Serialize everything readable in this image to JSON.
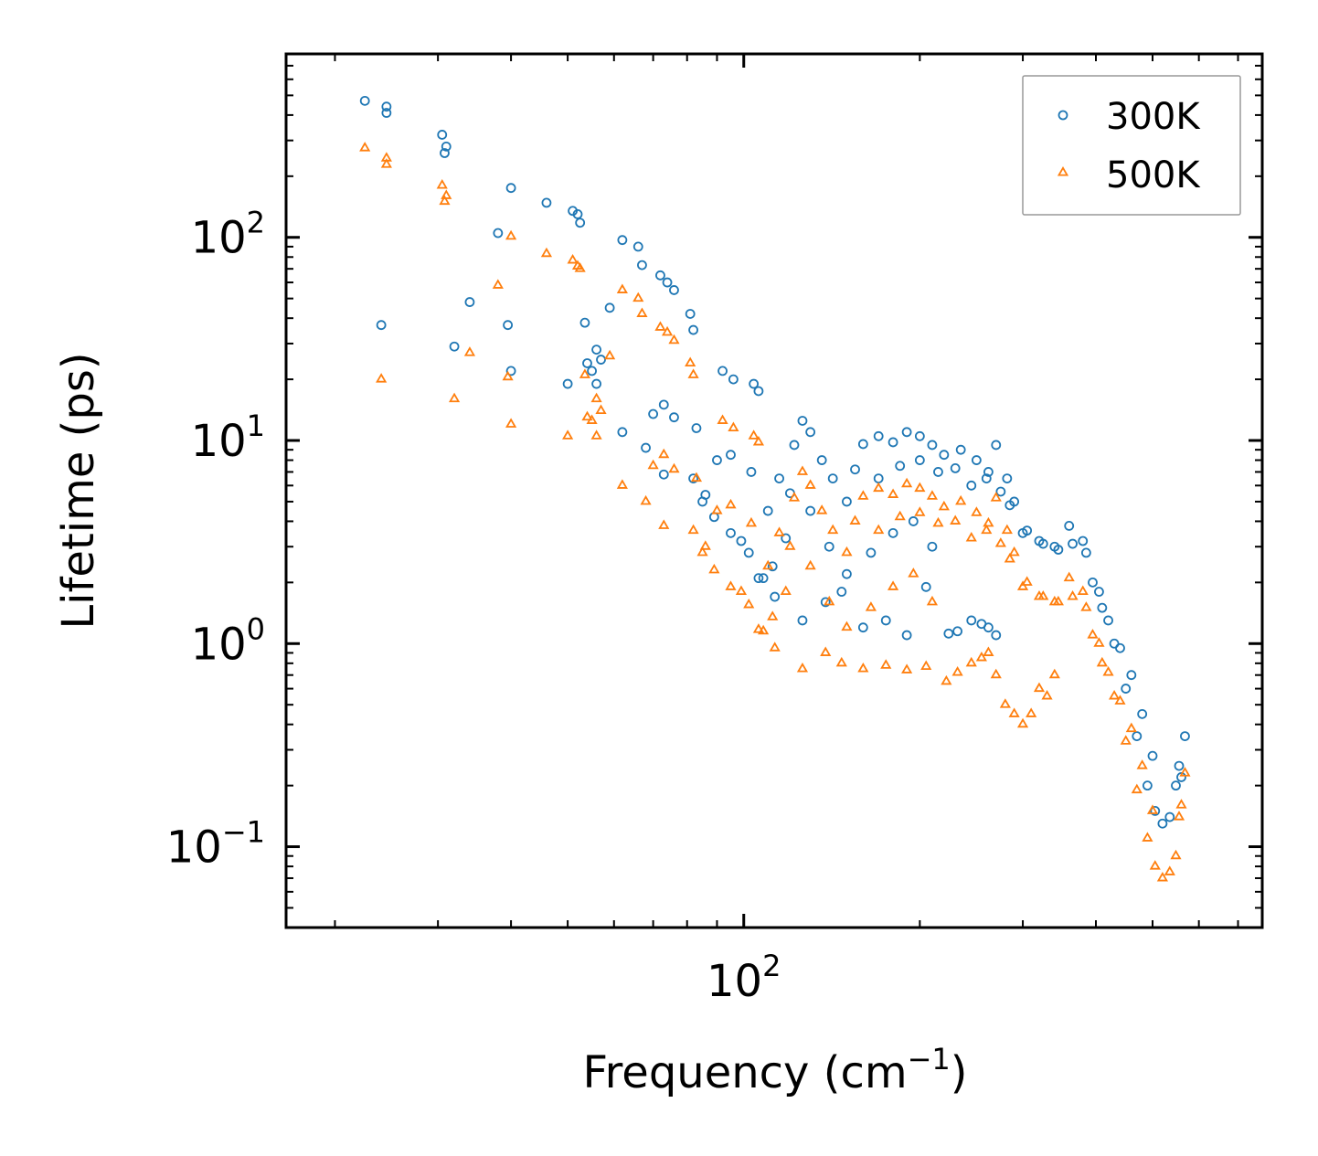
{
  "chart_data": {
    "type": "scatter",
    "title": "",
    "xlabel": "Frequency (cm",
    "xlabel_superscript": "−1",
    "xlabel_suffix": ")",
    "ylabel": "Lifetime (ps)",
    "xscale": "log",
    "yscale": "log",
    "xlim": [
      16.5,
      770
    ],
    "ylim": [
      0.04,
      800
    ],
    "x_major_ticks": [
      {
        "value": 100,
        "base": "10",
        "exp": "2"
      }
    ],
    "y_major_ticks": [
      {
        "value": 0.1,
        "base": "10",
        "exp": "−1"
      },
      {
        "value": 1,
        "base": "10",
        "exp": "0"
      },
      {
        "value": 10,
        "base": "10",
        "exp": "1"
      },
      {
        "value": 100,
        "base": "10",
        "exp": "2"
      }
    ],
    "legend_position": "top-right",
    "series": [
      {
        "name": "300K",
        "marker": "circle",
        "color": "#1f77b4",
        "points": [
          [
            22.5,
            470
          ],
          [
            24.5,
            440
          ],
          [
            24.5,
            410
          ],
          [
            30.5,
            320
          ],
          [
            31,
            280
          ],
          [
            30.8,
            260
          ],
          [
            40,
            175
          ],
          [
            46,
            148
          ],
          [
            51,
            135
          ],
          [
            52,
            130
          ],
          [
            52.5,
            118
          ],
          [
            62,
            97
          ],
          [
            66,
            90
          ],
          [
            67,
            73
          ],
          [
            72,
            65
          ],
          [
            74,
            60
          ],
          [
            76,
            55
          ],
          [
            81,
            42
          ],
          [
            82,
            35
          ],
          [
            38,
            105
          ],
          [
            34,
            48
          ],
          [
            32,
            29
          ],
          [
            24,
            37
          ],
          [
            40,
            22
          ],
          [
            39.5,
            37
          ],
          [
            59,
            45
          ],
          [
            56,
            28
          ],
          [
            57,
            25
          ],
          [
            54,
            24
          ],
          [
            53.5,
            38
          ],
          [
            55,
            22
          ],
          [
            56,
            19
          ],
          [
            50,
            19
          ],
          [
            62,
            11
          ],
          [
            68,
            9.2
          ],
          [
            70,
            13.5
          ],
          [
            73,
            15
          ],
          [
            76,
            13
          ],
          [
            83,
            11.5
          ],
          [
            92,
            22
          ],
          [
            96,
            20
          ],
          [
            104,
            19
          ],
          [
            106,
            17.5
          ],
          [
            73,
            6.8
          ],
          [
            82,
            6.5
          ],
          [
            90,
            8
          ],
          [
            86,
            5.4
          ],
          [
            95,
            8.5
          ],
          [
            103,
            7
          ],
          [
            85,
            5
          ],
          [
            89,
            4.2
          ],
          [
            95,
            3.5
          ],
          [
            99,
            3.2
          ],
          [
            102,
            2.8
          ],
          [
            106,
            2.1
          ],
          [
            112,
            2.4
          ],
          [
            118,
            3.3
          ],
          [
            122,
            9.5
          ],
          [
            126,
            12.5
          ],
          [
            130,
            11
          ],
          [
            136,
            8
          ],
          [
            142,
            6.5
          ],
          [
            150,
            5
          ],
          [
            160,
            9.6
          ],
          [
            170,
            10.5
          ],
          [
            180,
            9.8
          ],
          [
            190,
            11
          ],
          [
            200,
            10.5
          ],
          [
            210,
            9.5
          ],
          [
            220,
            8.5
          ],
          [
            235,
            9
          ],
          [
            250,
            8
          ],
          [
            262,
            7
          ],
          [
            270,
            9.5
          ],
          [
            282,
            6.5
          ],
          [
            290,
            5
          ],
          [
            300,
            3.5
          ],
          [
            320,
            3.2
          ],
          [
            340,
            3
          ],
          [
            360,
            3.8
          ],
          [
            380,
            3.2
          ],
          [
            395,
            2
          ],
          [
            410,
            1.5
          ],
          [
            430,
            1
          ],
          [
            450,
            0.6
          ],
          [
            470,
            0.35
          ],
          [
            490,
            0.2
          ],
          [
            505,
            0.15
          ],
          [
            520,
            0.13
          ],
          [
            535,
            0.14
          ],
          [
            548,
            0.2
          ],
          [
            560,
            0.22
          ],
          [
            568,
            0.35
          ],
          [
            555,
            0.25
          ],
          [
            147,
            1.8
          ],
          [
            160,
            1.2
          ],
          [
            175,
            1.3
          ],
          [
            190,
            1.1
          ],
          [
            205,
            1.9
          ],
          [
            224,
            1.12
          ],
          [
            232,
            1.15
          ],
          [
            245,
            1.3
          ],
          [
            255,
            1.25
          ],
          [
            262,
            1.2
          ],
          [
            270,
            1.1
          ],
          [
            150,
            2.2
          ],
          [
            165,
            2.8
          ],
          [
            180,
            3.5
          ],
          [
            195,
            4
          ],
          [
            210,
            3
          ],
          [
            120,
            5.5
          ],
          [
            130,
            4.5
          ],
          [
            140,
            3
          ],
          [
            115,
            6.5
          ],
          [
            110,
            4.5
          ],
          [
            108,
            2.1
          ],
          [
            113,
            1.7
          ],
          [
            126,
            1.3
          ],
          [
            138,
            1.6
          ],
          [
            155,
            7.2
          ],
          [
            170,
            6.5
          ],
          [
            185,
            7.5
          ],
          [
            200,
            8
          ],
          [
            215,
            7
          ],
          [
            230,
            7.3
          ],
          [
            245,
            6
          ],
          [
            260,
            6.5
          ],
          [
            275,
            5.6
          ],
          [
            285,
            4.8
          ],
          [
            305,
            3.6
          ],
          [
            325,
            3.1
          ],
          [
            345,
            2.9
          ],
          [
            365,
            3.1
          ],
          [
            385,
            2.8
          ],
          [
            405,
            1.8
          ],
          [
            420,
            1.3
          ],
          [
            440,
            0.95
          ],
          [
            460,
            0.7
          ],
          [
            480,
            0.45
          ],
          [
            500,
            0.28
          ]
        ]
      },
      {
        "name": "500K",
        "marker": "triangle",
        "color": "#ff7f0e",
        "points": [
          [
            22.5,
            275
          ],
          [
            24.5,
            245
          ],
          [
            24.5,
            228
          ],
          [
            30.5,
            180
          ],
          [
            31,
            160
          ],
          [
            30.8,
            150
          ],
          [
            40,
            101
          ],
          [
            46,
            83
          ],
          [
            51,
            77
          ],
          [
            52,
            72
          ],
          [
            52.5,
            70
          ],
          [
            62,
            55
          ],
          [
            66,
            50
          ],
          [
            67,
            42
          ],
          [
            72,
            36
          ],
          [
            74,
            34
          ],
          [
            76,
            31
          ],
          [
            81,
            24
          ],
          [
            82,
            21
          ],
          [
            38,
            58
          ],
          [
            34,
            27
          ],
          [
            32,
            16
          ],
          [
            24,
            20
          ],
          [
            40,
            12
          ],
          [
            39.5,
            20.5
          ],
          [
            59,
            26
          ],
          [
            56,
            16
          ],
          [
            57,
            14
          ],
          [
            54,
            13
          ],
          [
            53.5,
            21
          ],
          [
            55,
            12.5
          ],
          [
            56,
            10.5
          ],
          [
            50,
            10.5
          ],
          [
            62,
            6
          ],
          [
            68,
            5
          ],
          [
            70,
            7.5
          ],
          [
            73,
            8.5
          ],
          [
            76,
            7.2
          ],
          [
            83,
            6.5
          ],
          [
            92,
            12.5
          ],
          [
            96,
            11.5
          ],
          [
            104,
            10.5
          ],
          [
            106,
            9.8
          ],
          [
            73,
            3.8
          ],
          [
            82,
            3.6
          ],
          [
            90,
            4.5
          ],
          [
            86,
            3
          ],
          [
            95,
            4.8
          ],
          [
            103,
            3.9
          ],
          [
            85,
            2.8
          ],
          [
            89,
            2.3
          ],
          [
            95,
            1.9
          ],
          [
            99,
            1.8
          ],
          [
            102,
            1.55
          ],
          [
            106,
            1.17
          ],
          [
            112,
            1.35
          ],
          [
            118,
            1.8
          ],
          [
            122,
            5.2
          ],
          [
            126,
            7
          ],
          [
            130,
            6
          ],
          [
            136,
            4.5
          ],
          [
            142,
            3.6
          ],
          [
            150,
            2.8
          ],
          [
            160,
            5.3
          ],
          [
            170,
            5.8
          ],
          [
            180,
            5.4
          ],
          [
            190,
            6.1
          ],
          [
            200,
            5.8
          ],
          [
            210,
            5.3
          ],
          [
            220,
            4.7
          ],
          [
            235,
            5
          ],
          [
            250,
            4.4
          ],
          [
            262,
            3.9
          ],
          [
            270,
            5.2
          ],
          [
            282,
            3.6
          ],
          [
            290,
            2.8
          ],
          [
            300,
            1.9
          ],
          [
            320,
            1.7
          ],
          [
            340,
            1.6
          ],
          [
            360,
            2.1
          ],
          [
            380,
            1.8
          ],
          [
            395,
            1.1
          ],
          [
            410,
            0.8
          ],
          [
            430,
            0.55
          ],
          [
            450,
            0.33
          ],
          [
            470,
            0.19
          ],
          [
            490,
            0.11
          ],
          [
            505,
            0.08
          ],
          [
            520,
            0.07
          ],
          [
            535,
            0.075
          ],
          [
            548,
            0.09
          ],
          [
            560,
            0.16
          ],
          [
            568,
            0.23
          ],
          [
            555,
            0.14
          ],
          [
            147,
            0.8
          ],
          [
            160,
            0.75
          ],
          [
            175,
            0.78
          ],
          [
            190,
            0.74
          ],
          [
            205,
            0.77
          ],
          [
            222,
            0.65
          ],
          [
            232,
            0.72
          ],
          [
            245,
            0.8
          ],
          [
            255,
            0.85
          ],
          [
            262,
            0.9
          ],
          [
            270,
            0.7
          ],
          [
            280,
            0.5
          ],
          [
            290,
            0.45
          ],
          [
            300,
            0.4
          ],
          [
            310,
            0.45
          ],
          [
            320,
            0.6
          ],
          [
            330,
            0.55
          ],
          [
            340,
            0.7
          ],
          [
            150,
            1.2
          ],
          [
            165,
            1.5
          ],
          [
            180,
            1.9
          ],
          [
            195,
            2.2
          ],
          [
            210,
            1.6
          ],
          [
            120,
            3
          ],
          [
            130,
            2.4
          ],
          [
            140,
            1.6
          ],
          [
            115,
            3.5
          ],
          [
            110,
            2.4
          ],
          [
            108,
            1.15
          ],
          [
            113,
            0.95
          ],
          [
            126,
            0.75
          ],
          [
            138,
            0.9
          ],
          [
            155,
            4
          ],
          [
            170,
            3.6
          ],
          [
            185,
            4.2
          ],
          [
            200,
            4.4
          ],
          [
            215,
            3.9
          ],
          [
            230,
            4
          ],
          [
            245,
            3.3
          ],
          [
            260,
            3.6
          ],
          [
            275,
            3.1
          ],
          [
            285,
            2.6
          ],
          [
            305,
            2
          ],
          [
            325,
            1.7
          ],
          [
            345,
            1.6
          ],
          [
            365,
            1.7
          ],
          [
            385,
            1.5
          ],
          [
            405,
            1
          ],
          [
            420,
            0.72
          ],
          [
            440,
            0.52
          ],
          [
            460,
            0.38
          ],
          [
            480,
            0.25
          ],
          [
            500,
            0.15
          ]
        ]
      }
    ]
  }
}
